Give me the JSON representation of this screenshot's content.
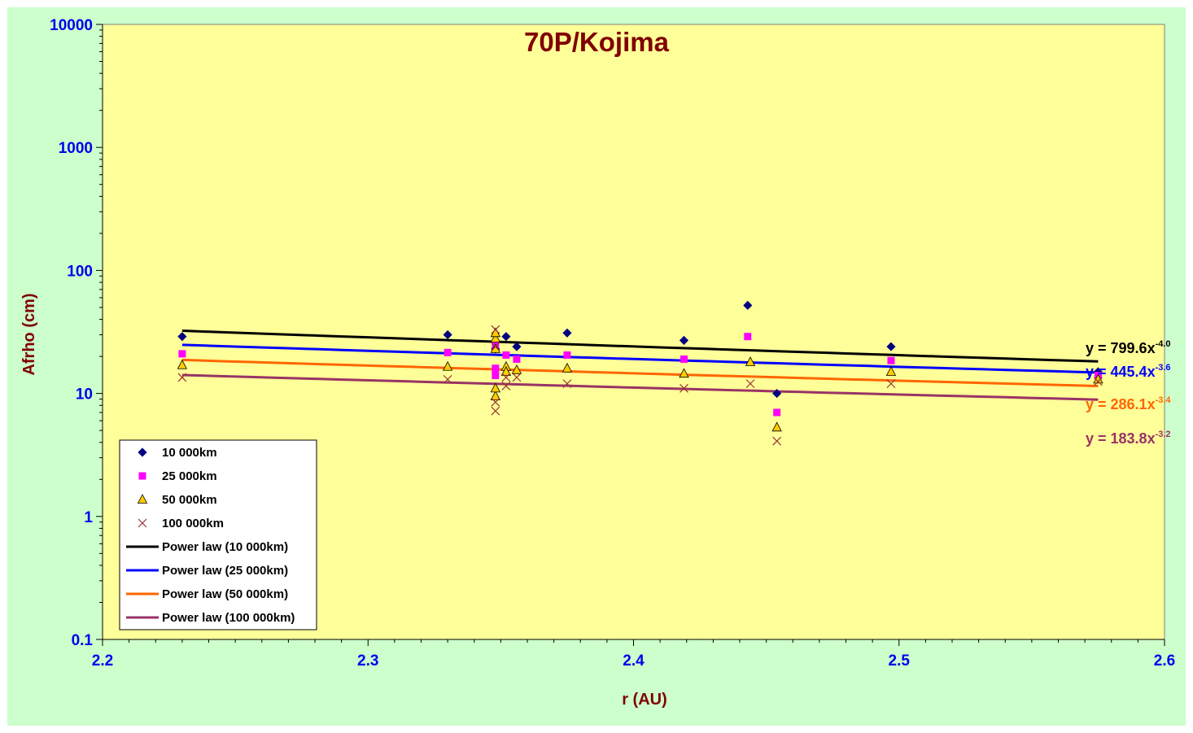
{
  "chart_data": {
    "type": "scatter",
    "title": "70P/Kojima",
    "xlabel": "r (AU)",
    "ylabel": "Afrho (cm)",
    "xlim": [
      2.2,
      2.6
    ],
    "ylim": [
      0.1,
      10000
    ],
    "y_scale": "log",
    "x_ticks": [
      "2.2",
      "2.3",
      "2.4",
      "2.5",
      "2.6"
    ],
    "y_ticks": [
      "10000",
      "1000",
      "100",
      "10",
      "1",
      "0.1"
    ],
    "plot_bg": "#ffff99",
    "chart_bg": "#ccffcc",
    "legend_position": "bottom-left",
    "series": [
      {
        "name": "10 000km",
        "marker": "diamond",
        "color": "#000080",
        "x": [
          2.23,
          2.33,
          2.348,
          2.348,
          2.352,
          2.356,
          2.375,
          2.419,
          2.443,
          2.454,
          2.497,
          2.575
        ],
        "y": [
          29,
          30,
          23,
          26,
          29,
          24,
          31,
          27,
          52,
          10,
          24,
          15
        ]
      },
      {
        "name": "25 000km",
        "marker": "square",
        "color": "#ff00ff",
        "x": [
          2.23,
          2.33,
          2.348,
          2.348,
          2.348,
          2.352,
          2.356,
          2.375,
          2.419,
          2.443,
          2.454,
          2.497,
          2.575
        ],
        "y": [
          21,
          21.5,
          14,
          16,
          25,
          20.5,
          19,
          20.5,
          19,
          29,
          7,
          18.5,
          14
        ]
      },
      {
        "name": "50 000km",
        "marker": "triangle",
        "color": "#ffcc00",
        "x": [
          2.23,
          2.33,
          2.348,
          2.348,
          2.348,
          2.348,
          2.348,
          2.352,
          2.352,
          2.356,
          2.375,
          2.419,
          2.444,
          2.454,
          2.497,
          2.575
        ],
        "y": [
          17,
          16.5,
          9.5,
          11,
          23,
          28,
          31,
          16.5,
          15,
          15.5,
          16,
          14.5,
          18,
          5.3,
          15,
          13
        ]
      },
      {
        "name": "100 000km",
        "marker": "x",
        "color": "#993333",
        "x": [
          2.23,
          2.33,
          2.348,
          2.348,
          2.348,
          2.348,
          2.352,
          2.352,
          2.356,
          2.375,
          2.419,
          2.444,
          2.454,
          2.497,
          2.575
        ],
        "y": [
          13.5,
          13,
          7.2,
          8.5,
          24,
          33,
          11.5,
          13.5,
          13.5,
          12,
          11,
          12,
          4.1,
          12,
          12.5
        ]
      }
    ],
    "trendlines": [
      {
        "name": "Power law (10 000km)",
        "color": "#000000",
        "coef": 799.6,
        "exp": -4.0,
        "x_range": [
          2.23,
          2.575
        ],
        "equation": "y = 799.6x",
        "equation_exp": "-4.0",
        "label_color": "#000000"
      },
      {
        "name": "Power law (25 000km)",
        "color": "#0000ff",
        "coef": 445.4,
        "exp": -3.6,
        "x_range": [
          2.23,
          2.575
        ],
        "equation": "y = 445.4x",
        "equation_exp": "-3.6",
        "label_color": "#0000ff"
      },
      {
        "name": "Power law (50 000km)",
        "color": "#ff6600",
        "coef": 286.1,
        "exp": -3.4,
        "x_range": [
          2.23,
          2.575
        ],
        "equation": "y = 286.1x",
        "equation_exp": "-3.4",
        "label_color": "#ff6600"
      },
      {
        "name": "Power law (100 000km)",
        "color": "#993366",
        "coef": 183.8,
        "exp": -3.2,
        "x_range": [
          2.23,
          2.575
        ],
        "equation": "y = 183.8x",
        "equation_exp": "-3.2",
        "label_color": "#993366"
      }
    ]
  }
}
